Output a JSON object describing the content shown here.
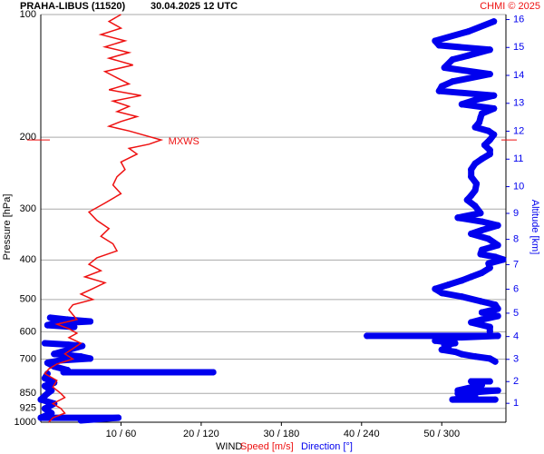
{
  "chart_data": {
    "type": "wind-profile",
    "title": "PRAHA-LIBUS (11520)",
    "subtitle": "30.04.2025 12 UTC",
    "credit": "CHMI © 2025",
    "y_label": "Pressure [hPa]",
    "y2_label": "Altitude [km]",
    "x_label": "WIND",
    "x_label_speed": "Speed [m/s]",
    "x_label_direction": "Direction [°]",
    "annotation": {
      "text": "MXWS",
      "pressure": 203
    },
    "ylim": [
      100,
      1000
    ],
    "log_y": true,
    "grid": true,
    "yticks": [
      100,
      200,
      300,
      400,
      500,
      600,
      700,
      850,
      925,
      1000
    ],
    "xlim": [
      0,
      58
    ],
    "x2lim": [
      0,
      348
    ],
    "xticks": [
      {
        "value": 10,
        "label": "10 / 60"
      },
      {
        "value": 20,
        "label": "20 / 120"
      },
      {
        "value": 30,
        "label": "30 / 180"
      },
      {
        "value": 40,
        "label": "40 / 240"
      },
      {
        "value": 50,
        "label": "50 / 300"
      }
    ],
    "y2ticks": [
      1,
      2,
      3,
      4,
      5,
      6,
      7,
      8,
      9,
      10,
      11,
      12,
      13,
      14,
      15,
      16
    ],
    "series": [
      {
        "name": "Speed [m/s]",
        "color": "#ee1111",
        "pressure": [
          100,
          104,
          108,
          112,
          116,
          120,
          124,
          128,
          133,
          138,
          143,
          148,
          153,
          158,
          163,
          168,
          173,
          178,
          183,
          188,
          193,
          198,
          203,
          208,
          213,
          220,
          230,
          240,
          250,
          262,
          275,
          290,
          305,
          320,
          335,
          350,
          365,
          380,
          395,
          410,
          425,
          440,
          455,
          470,
          485,
          500,
          515,
          530,
          545,
          560,
          575,
          590,
          605,
          620,
          640,
          660,
          680,
          700,
          720,
          740,
          760,
          790,
          820,
          850,
          870,
          900,
          925,
          950,
          975,
          1000
        ],
        "values": [
          10,
          8.5,
          10,
          7.5,
          10.5,
          8,
          11,
          8.5,
          11.5,
          8,
          9.5,
          11,
          8.5,
          12.5,
          9,
          11,
          9.5,
          12,
          10,
          8.5,
          11,
          13,
          15,
          13.5,
          11,
          12,
          10,
          10.5,
          9.5,
          9,
          10,
          8,
          6,
          7,
          8.5,
          7.5,
          9,
          9.5,
          7,
          6,
          7.5,
          5.5,
          8,
          6.5,
          5,
          6.5,
          4,
          3.5,
          4,
          4.5,
          2,
          3.5,
          4.5,
          3.5,
          5,
          4,
          3,
          4,
          2,
          1,
          0.5,
          2,
          1.5,
          2.5,
          3,
          1.5,
          2.5,
          3,
          1.5,
          1
        ]
      },
      {
        "name": "Direction [°]",
        "color": "#0000ee",
        "axis": "x2",
        "pressure": [
          104,
          110,
          116,
          119,
          122,
          126,
          129,
          135,
          140,
          146,
          150,
          154,
          158,
          162,
          166,
          170,
          175,
          179,
          184,
          189,
          193,
          197,
          203,
          209,
          215,
          220,
          226,
          232,
          240,
          250,
          260,
          270,
          278,
          285,
          295,
          307,
          315,
          322,
          329,
          338,
          345,
          355,
          368,
          378,
          387,
          393,
          399,
          408,
          418,
          430,
          440,
          449,
          460,
          471,
          482,
          492,
          505,
          515,
          527,
          538,
          549,
          560,
          569,
          584,
          599,
          614,
          614,
          622,
          631,
          640,
          646,
          655,
          664,
          672,
          681,
          690,
          698,
          710,
          794,
          794,
          810,
          836,
          836,
          850,
          866,
          880,
          880,
          554,
          560,
          566,
          572,
          578,
          584,
          640,
          645,
          650,
          680,
          690,
          698,
          705,
          715,
          730,
          745,
          754,
          754,
          760,
          780,
          800,
          815,
          836,
          850,
          880,
          900,
          926,
          950,
          975,
          975,
          990
        ],
        "values": [
          339,
          320,
          295,
          298,
          336,
          320,
          308,
          302,
          336,
          308,
          300,
          298,
          339,
          325,
          315,
          339,
          330,
          329,
          328,
          325,
          335,
          339,
          336,
          332,
          336,
          336,
          330,
          325,
          322,
          322,
          326,
          325,
          322,
          319,
          325,
          329,
          312,
          330,
          342,
          330,
          322,
          335,
          342,
          330,
          329,
          340,
          346,
          335,
          336,
          330,
          322,
          315,
          305,
          295,
          300,
          315,
          329,
          340,
          342,
          330,
          342,
          330,
          322,
          336,
          336,
          244,
          342,
          300,
          295,
          310,
          302,
          305,
          300,
          310,
          315,
          325,
          336,
          340,
          336,
          322,
          330,
          312,
          342,
          312,
          325,
          308,
          340,
          7,
          20,
          37,
          10,
          5,
          25,
          3,
          20,
          31,
          10,
          30,
          37,
          15,
          5,
          10,
          20,
          17,
          129,
          5,
          3,
          10,
          3,
          8,
          5,
          0,
          10,
          3,
          8,
          0,
          58,
          30
        ]
      }
    ]
  }
}
